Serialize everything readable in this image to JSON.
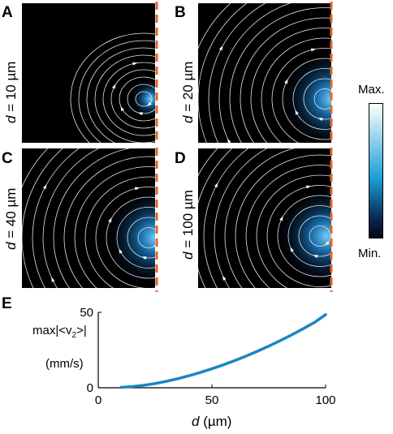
{
  "panels": [
    {
      "letter": "A",
      "label_var": "d",
      "label_rest": " = 10 µm"
    },
    {
      "letter": "B",
      "label_var": "d",
      "label_rest": " = 20 µm"
    },
    {
      "letter": "C",
      "label_var": "d",
      "label_rest": " = 40 µm"
    },
    {
      "letter": "D",
      "label_var": "d",
      "label_rest": " = 100 µm"
    }
  ],
  "colorbar": {
    "max_label": "Max.",
    "min_label": "Min.",
    "top_color": "#ffffff",
    "mid_color": "#1aa0d8",
    "low_color": "#0a2a55",
    "bottom_color": "#000814"
  },
  "accent_color": "#e8642a",
  "panelE": {
    "letter": "E"
  },
  "chart_data": {
    "type": "line",
    "title": "",
    "ylabel_line1": "max|<v",
    "ylabel_sub": "2",
    "ylabel_close": ">|",
    "ylabel_line2": "(mm/s)",
    "xlabel_var": "d",
    "xlabel_rest": " (µm)",
    "xlim": [
      0,
      100
    ],
    "ylim": [
      0,
      50
    ],
    "xticks": [
      "0",
      "50",
      "100"
    ],
    "yticks": [
      "0",
      "50"
    ],
    "line_color": "#1a86c0",
    "series": [
      {
        "x": [
          10,
          15,
          20,
          25,
          30,
          35,
          40,
          45,
          50,
          55,
          60,
          65,
          70,
          75,
          80,
          85,
          90,
          95,
          100
        ],
        "y": [
          0.3,
          0.8,
          1.6,
          2.8,
          4.3,
          6.0,
          8.0,
          10.2,
          12.6,
          15.2,
          18.0,
          21.0,
          24.2,
          27.6,
          31.2,
          35.0,
          39.0,
          43.2,
          48.5
        ]
      }
    ]
  }
}
